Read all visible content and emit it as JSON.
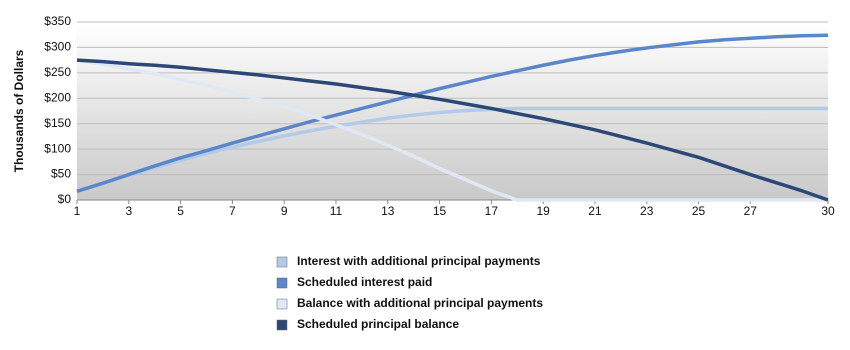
{
  "chart_data": {
    "type": "line",
    "y_label": "Thousands of Dollars",
    "x": [
      1,
      2,
      3,
      4,
      5,
      6,
      7,
      8,
      9,
      10,
      11,
      12,
      13,
      14,
      15,
      16,
      17,
      18,
      19,
      20,
      21,
      22,
      23,
      24,
      25,
      26,
      27,
      28,
      29,
      30
    ],
    "xlim": [
      1,
      30
    ],
    "xticks": [
      1,
      3,
      5,
      7,
      9,
      11,
      13,
      15,
      17,
      19,
      21,
      23,
      25,
      27,
      30
    ],
    "ylim": [
      0,
      350
    ],
    "yticks": [
      {
        "value": 0,
        "label": "$0"
      },
      {
        "value": 50,
        "label": "$50"
      },
      {
        "value": 100,
        "label": "$100"
      },
      {
        "value": 150,
        "label": "$150"
      },
      {
        "value": 200,
        "label": "$200"
      },
      {
        "value": 250,
        "label": "$250"
      },
      {
        "value": 300,
        "label": "$300"
      },
      {
        "value": 350,
        "label": "$350"
      }
    ],
    "grid": true,
    "series": [
      {
        "name": "Interest with additional principal payments",
        "color": "#b3cbe9",
        "values": [
          17,
          33,
          48,
          63,
          78,
          91,
          104,
          115,
          126,
          136,
          145,
          153,
          161,
          167,
          172,
          176,
          178,
          180,
          180,
          180,
          180,
          180,
          180,
          180,
          180,
          180,
          180,
          180,
          180,
          180
        ]
      },
      {
        "name": "Scheduled interest paid",
        "color": "#5b86c9",
        "values": [
          17,
          33,
          50,
          67,
          83,
          97,
          112,
          126,
          140,
          154,
          167,
          180,
          193,
          206,
          219,
          231,
          243,
          254,
          265,
          275,
          284,
          292,
          299,
          305,
          311,
          315,
          318,
          321,
          323,
          324
        ]
      },
      {
        "name": "Balance with additional principal payments",
        "color": "#e1e8f5",
        "values": [
          275,
          267,
          258,
          248,
          237,
          225,
          212,
          198,
          184,
          167,
          148,
          129,
          108,
          86,
          62,
          40,
          18,
          0,
          0,
          0,
          0,
          0,
          0,
          0,
          0,
          0,
          0,
          0,
          0,
          0
        ]
      },
      {
        "name": "Scheduled principal balance",
        "color": "#2c4876",
        "values": [
          275,
          272,
          268,
          265,
          261,
          256,
          251,
          246,
          240,
          234,
          228,
          221,
          214,
          206,
          198,
          189,
          180,
          170,
          160,
          149,
          138,
          125,
          112,
          98,
          84,
          67,
          50,
          34,
          18,
          0
        ]
      }
    ]
  }
}
